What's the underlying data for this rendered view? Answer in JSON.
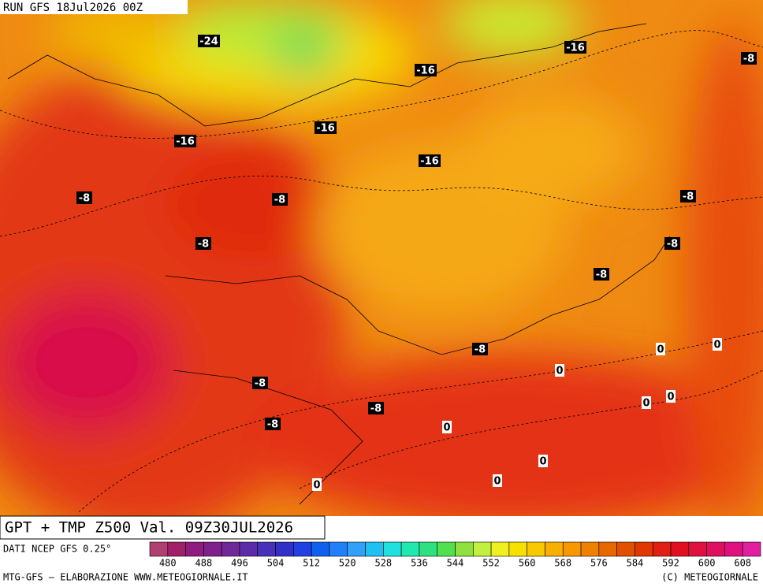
{
  "header": {
    "run": "RUN GFS 18Jul2026 00Z"
  },
  "map": {
    "contour_labels": [
      -24,
      -16,
      -16,
      -16,
      -16,
      -16,
      -8,
      -8,
      -8,
      -8,
      -8,
      -8,
      -8,
      -8,
      -8,
      -8,
      -8,
      0,
      0,
      0,
      0,
      0,
      0,
      0,
      0,
      0
    ]
  },
  "title": "GPT + TMP Z500 Val. 09Z30JUL2026",
  "source": "DATI NCEP GFS 0.25°",
  "scale": {
    "labels": [
      480,
      488,
      496,
      504,
      512,
      520,
      528,
      536,
      544,
      552,
      560,
      568,
      576,
      584,
      592,
      600,
      608
    ],
    "colors": [
      "#b04070",
      "#a0206a",
      "#901c80",
      "#80208c",
      "#702898",
      "#5c2ca8",
      "#4830b8",
      "#3030c8",
      "#2040e0",
      "#1060f0",
      "#2080f8",
      "#30a0f8",
      "#20c0f0",
      "#20e0e0",
      "#20e8b0",
      "#30e080",
      "#50e050",
      "#90e040",
      "#c0f040",
      "#f0f020",
      "#f8e000",
      "#f8c800",
      "#f8b000",
      "#f89800",
      "#f08000",
      "#e86800",
      "#e05000",
      "#e03800",
      "#e02010",
      "#e01020",
      "#e01040",
      "#e01060",
      "#e01080",
      "#e020a0"
    ]
  },
  "footer": {
    "left": "MTG-GFS — ELABORAZIONE WWW.METEOGIORNALE.IT",
    "right": "(C) METEOGIORNALE"
  }
}
